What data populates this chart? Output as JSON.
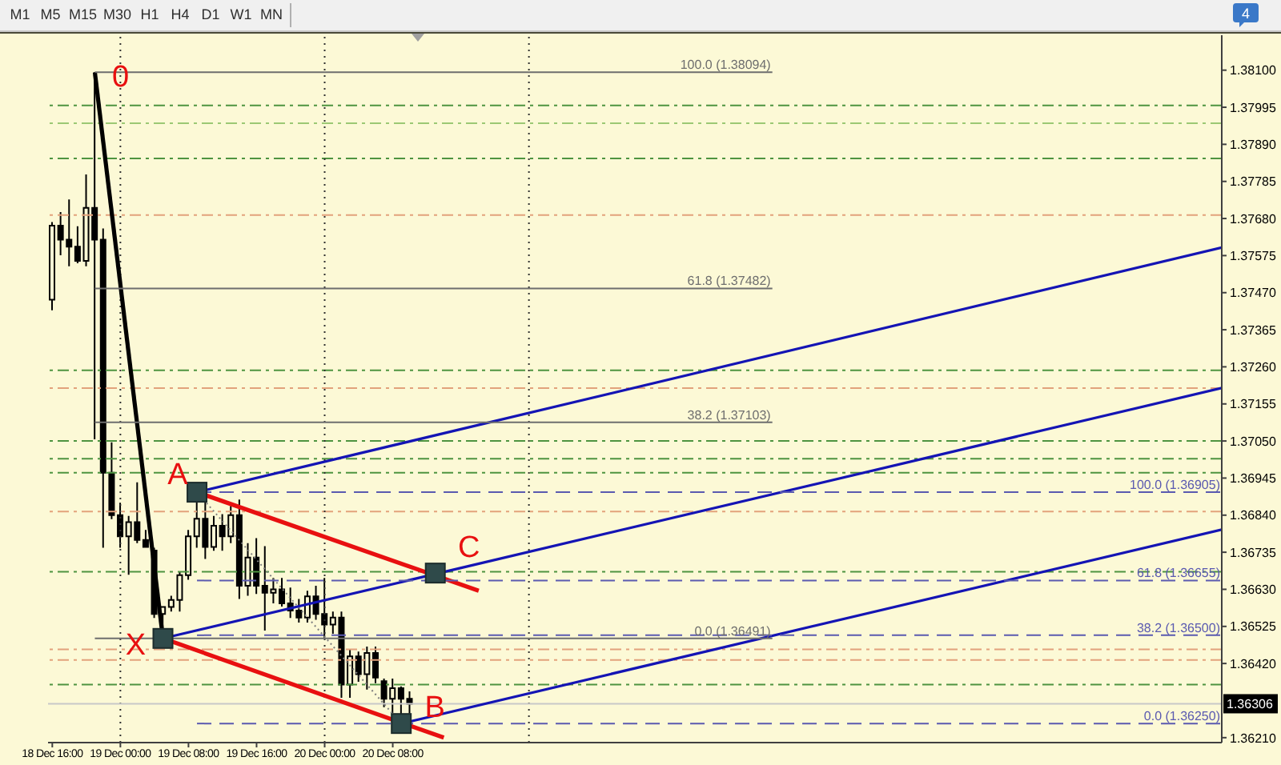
{
  "chart_data": {
    "type": "candlestick",
    "color": "#000000",
    "x": [
      "--12-18T16:00",
      "--12-18T17:00",
      "--12-18T18:00",
      "--12-18T19:00",
      "--12-18T20:00",
      "--12-18T21:00",
      "--12-18T22:00",
      "--12-18T23:00",
      "--12-19T00:00",
      "--12-19T01:00",
      "--12-19T02:00",
      "--12-19T03:00",
      "--12-19T04:00",
      "--12-19T05:00",
      "--12-19T06:00",
      "--12-19T07:00",
      "--12-19T08:00",
      "--12-19T09:00",
      "--12-19T10:00",
      "--12-19T11:00",
      "--12-19T12:00",
      "--12-19T13:00",
      "--12-19T14:00",
      "--12-19T15:00",
      "--12-19T16:00",
      "--12-19T17:00",
      "--12-19T18:00",
      "--12-19T19:00",
      "--12-19T20:00",
      "--12-19T21:00",
      "--12-19T22:00",
      "--12-19T23:00",
      "--12-20T00:00",
      "--12-20T01:00",
      "--12-20T02:00",
      "--12-20T03:00",
      "--12-20T04:00",
      "--12-20T05:00",
      "--12-20T06:00",
      "--12-20T07:00",
      "--12-20T08:00",
      "--12-20T09:00",
      "--12-20T10:00"
    ],
    "ohlc": [
      [
        1.3745,
        1.3767,
        1.3742,
        1.3766
      ],
      [
        1.3766,
        1.37698,
        1.37576,
        1.3762
      ],
      [
        1.3762,
        1.37734,
        1.37545,
        1.376
      ],
      [
        1.376,
        1.37658,
        1.37553,
        1.3756
      ],
      [
        1.3756,
        1.37805,
        1.37545,
        1.3771
      ],
      [
        1.3771,
        1.38094,
        1.37055,
        1.3762
      ],
      [
        1.3762,
        1.37652,
        1.36748,
        1.3696
      ],
      [
        1.3696,
        1.37046,
        1.36829,
        1.3684
      ],
      [
        1.3684,
        1.36875,
        1.36748,
        1.3678
      ],
      [
        1.3678,
        1.36838,
        1.36671,
        1.3682
      ],
      [
        1.3682,
        1.36933,
        1.36761,
        1.3677
      ],
      [
        1.3677,
        1.36798,
        1.36748,
        1.3675
      ],
      [
        1.3674,
        1.36748,
        1.36549,
        1.3656
      ],
      [
        1.3656,
        1.36581,
        1.36491,
        1.3658
      ],
      [
        1.3658,
        1.36612,
        1.36567,
        1.366
      ],
      [
        1.366,
        1.3668,
        1.36567,
        1.3667
      ],
      [
        1.3667,
        1.36798,
        1.36657,
        1.3678
      ],
      [
        1.3678,
        1.36905,
        1.36748,
        1.3683
      ],
      [
        1.3683,
        1.36895,
        1.36716,
        1.3675
      ],
      [
        1.3675,
        1.36838,
        1.36739,
        1.3681
      ],
      [
        1.3681,
        1.36843,
        1.36739,
        1.3678
      ],
      [
        1.3678,
        1.36866,
        1.36761,
        1.3684
      ],
      [
        1.3684,
        1.36884,
        1.36603,
        1.3664
      ],
      [
        1.3664,
        1.36761,
        1.36612,
        1.3672
      ],
      [
        1.3672,
        1.36775,
        1.36617,
        1.3664
      ],
      [
        1.3664,
        1.36752,
        1.36513,
        1.3662
      ],
      [
        1.3662,
        1.36662,
        1.3659,
        1.3663
      ],
      [
        1.3663,
        1.36662,
        1.36581,
        1.3659
      ],
      [
        1.3659,
        1.36635,
        1.36549,
        1.3657
      ],
      [
        1.3657,
        1.36603,
        1.36536,
        1.3655
      ],
      [
        1.3655,
        1.36626,
        1.36536,
        1.3661
      ],
      [
        1.3661,
        1.3664,
        1.36544,
        1.3656
      ],
      [
        1.3656,
        1.36662,
        1.36491,
        1.3653
      ],
      [
        1.3653,
        1.36567,
        1.36504,
        1.3655
      ],
      [
        1.3655,
        1.36567,
        1.36323,
        1.3636
      ],
      [
        1.3636,
        1.36459,
        1.36323,
        1.3644
      ],
      [
        1.3644,
        1.36454,
        1.36368,
        1.3639
      ],
      [
        1.3639,
        1.36468,
        1.36346,
        1.3645
      ],
      [
        1.3645,
        1.36468,
        1.36364,
        1.3638
      ],
      [
        1.3637,
        1.36377,
        1.36296,
        1.3632
      ],
      [
        1.3632,
        1.36377,
        1.3628,
        1.3635
      ],
      [
        1.3635,
        1.36355,
        1.3625,
        1.3632
      ],
      [
        1.3632,
        1.36341,
        1.36278,
        1.36306
      ]
    ],
    "series": [
      {
        "type": "line",
        "color": "#000000",
        "x": [
          "--12-18T21:00",
          "--12-19T05:00"
        ],
        "values": [
          1.38094,
          1.36491
        ]
      },
      {
        "type": "line",
        "color": "#e81010",
        "x": [
          "--12-19T09:00",
          "--12-20T18:06"
        ],
        "values": [
          1.36905,
          1.36626
        ]
      },
      {
        "type": "line",
        "color": "#e81010",
        "x": [
          "--12-19T05:00",
          "--12-20T14:00"
        ],
        "values": [
          1.36491,
          1.3621
        ]
      },
      {
        "type": "line",
        "color": "#1414b4",
        "x": [
          "--12-19T09:00",
          "--12-24T09:24"
        ],
        "values": [
          1.36905,
          1.37598
        ]
      },
      {
        "type": "line",
        "color": "#1414b4",
        "x": [
          "--12-19T05:00",
          "--12-24T09:24"
        ],
        "values": [
          1.36491,
          1.372
        ]
      },
      {
        "type": "line",
        "color": "#1414b4",
        "x": [
          "--12-20T09:00",
          "--12-24T09:24"
        ],
        "values": [
          1.3625,
          1.36799
        ]
      },
      {
        "type": "line",
        "color": "#808080",
        "line_style": "dotted",
        "x": [
          "--12-19T09:00",
          "--12-20T09:00"
        ],
        "values": [
          1.36905,
          1.3625
        ]
      },
      {
        "type": "line",
        "name": "100.0 (1.38094)",
        "color": "#6e6e6e",
        "x": [
          "--12-18T21:00",
          "--12-22T04:36"
        ],
        "values": [
          1.38094,
          1.38094
        ]
      },
      {
        "type": "line",
        "name": "61.8 (1.37482)",
        "color": "#6e6e6e",
        "x": [
          "--12-18T21:00",
          "--12-22T04:36"
        ],
        "values": [
          1.37482,
          1.37482
        ]
      },
      {
        "type": "line",
        "name": "38.2 (1.37103)",
        "color": "#6e6e6e",
        "x": [
          "--12-18T21:00",
          "--12-22T04:36"
        ],
        "values": [
          1.37103,
          1.37103
        ]
      },
      {
        "type": "line",
        "name": "0.0 (1.36491)",
        "color": "#6e6e6e",
        "x": [
          "--12-18T21:00",
          "--12-22T04:36"
        ],
        "values": [
          1.36491,
          1.36491
        ]
      },
      {
        "type": "line",
        "name": "100.0 (1.36905)",
        "color": "#5a5ab0",
        "line_style": "dashed",
        "x": [
          "--12-19T09:00",
          "--12-24T09:24"
        ],
        "values": [
          1.36905,
          1.36905
        ]
      },
      {
        "type": "line",
        "name": "61.8 (1.36655)",
        "color": "#5a5ab0",
        "line_style": "dashed",
        "x": [
          "--12-19T09:00",
          "--12-24T09:24"
        ],
        "values": [
          1.36655,
          1.36655
        ]
      },
      {
        "type": "line",
        "name": "38.2 (1.36500)",
        "color": "#5a5ab0",
        "line_style": "dashed",
        "x": [
          "--12-19T09:00",
          "--12-24T09:24"
        ],
        "values": [
          1.365,
          1.365
        ]
      },
      {
        "type": "line",
        "name": "0.0 (1.36250)",
        "color": "#5a5ab0",
        "line_style": "dashed",
        "x": [
          "--12-19T09:00",
          "--12-24T09:24"
        ],
        "values": [
          1.3625,
          1.3625
        ]
      },
      {
        "type": "scatter",
        "marker": "square",
        "color": "#2f4a4a",
        "x": [
          "--12-19T05:00",
          "--12-19T09:00",
          "--12-20T09:00",
          "--12-20T13:00"
        ],
        "values": [
          1.36491,
          1.36905,
          1.3625,
          1.36676
        ]
      }
    ],
    "xlim": [
      "--12-18T15:30",
      "--12-24T09:24"
    ],
    "xticks": [
      {
        "value": "--12-18T16:00",
        "label": "18 Dec 16:00"
      },
      {
        "value": "--12-19T00:00",
        "label": "19 Dec 00:00"
      },
      {
        "value": "--12-19T08:00",
        "label": "19 Dec 08:00"
      },
      {
        "value": "--12-19T16:00",
        "label": "19 Dec 16:00"
      },
      {
        "value": "--12-20T00:00",
        "label": "20 Dec 00:00"
      },
      {
        "value": "--12-20T08:00",
        "label": "20 Dec 08:00"
      }
    ],
    "ylim": [
      1.36196,
      1.38199
    ],
    "yticks": [
      {
        "value": 1.381,
        "label": "1.38100"
      },
      1.37995,
      {
        "value": 1.3789,
        "label": "1.37890"
      },
      1.37785,
      {
        "value": 1.3768,
        "label": "1.37680"
      },
      1.37575,
      {
        "value": 1.3747,
        "label": "1.37470"
      },
      1.37365,
      {
        "value": 1.3726,
        "label": "1.37260"
      },
      1.37155,
      {
        "value": 1.3705,
        "label": "1.37050"
      },
      1.36945,
      {
        "value": 1.3684,
        "label": "1.36840"
      },
      1.36735,
      {
        "value": 1.3663,
        "label": "1.36630"
      },
      1.36525,
      {
        "value": 1.3642,
        "label": "1.36420"
      },
      {
        "value": 1.3621,
        "label": "1.36210"
      }
    ],
    "ref_lines": [
      {
        "axis": "y",
        "value": 1.38,
        "color": "#4e9440",
        "line_style": "dashed"
      },
      {
        "axis": "y",
        "value": 1.3795,
        "color": "#9cc874",
        "line_style": "dashed"
      },
      {
        "axis": "y",
        "value": 1.3785,
        "color": "#4e9440",
        "line_style": "dashed"
      },
      {
        "axis": "y",
        "value": 1.3769,
        "color": "#e2a27c",
        "line_style": "dashed"
      },
      {
        "axis": "y",
        "value": 1.3725,
        "color": "#4e9440",
        "line_style": "dashed"
      },
      {
        "axis": "y",
        "value": 1.372,
        "color": "#e2a27c",
        "line_style": "dashed"
      },
      {
        "axis": "y",
        "value": 1.3705,
        "color": "#4e9440",
        "line_style": "dashed"
      },
      {
        "axis": "y",
        "value": 1.37,
        "color": "#4e9440",
        "line_style": "dashed"
      },
      {
        "axis": "y",
        "value": 1.3696,
        "color": "#4e9440",
        "line_style": "dashed"
      },
      {
        "axis": "y",
        "value": 1.3685,
        "color": "#e2a27c",
        "line_style": "dashed"
      },
      {
        "axis": "y",
        "value": 1.3668,
        "color": "#4e9440",
        "line_style": "dashed"
      },
      {
        "axis": "y",
        "value": 1.3646,
        "color": "#e2a27c",
        "line_style": "dashed"
      },
      {
        "axis": "y",
        "value": 1.3643,
        "color": "#e2a27c",
        "line_style": "dashed"
      },
      {
        "axis": "y",
        "value": 1.3636,
        "color": "#4e9440",
        "line_style": "dashed"
      },
      {
        "axis": "x",
        "value": "--12-19T00:00",
        "color": "#303030",
        "line_style": "dotted"
      },
      {
        "axis": "x",
        "value": "--12-20T00:00",
        "color": "#303030",
        "line_style": "dotted"
      },
      {
        "axis": "x",
        "value": "--12-21T00:00",
        "color": "#303030",
        "line_style": "dotted"
      },
      {
        "axis": "y",
        "value": 1.36306,
        "label": "1.36306",
        "color": "#c8c8c8",
        "line_style": "solid"
      }
    ],
    "annotations": [
      "M1",
      "M5",
      "M15",
      "M30",
      "H1",
      "H4",
      "D1",
      "W1",
      "MN",
      "4",
      {
        "text": "0",
        "x": "--12-18T21:00",
        "y": 1.38094
      },
      {
        "text": "X",
        "x": "--12-19T05:00",
        "y": 1.36491
      },
      {
        "text": "A",
        "x": "--12-19T09:00",
        "y": 1.36905
      },
      {
        "text": "B",
        "x": "--12-20T09:00",
        "y": 1.3625
      },
      {
        "text": "C",
        "x": "--12-20T13:00",
        "y": 1.36676
      }
    ]
  }
}
